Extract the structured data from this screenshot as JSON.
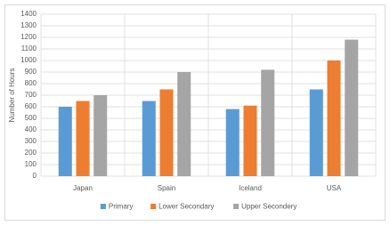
{
  "chart_data": {
    "type": "bar",
    "y_label": "Number of Hours",
    "categories": [
      "Japan",
      "Spain",
      "Iceland",
      "USA"
    ],
    "series": [
      {
        "name": "Primary",
        "color": "#5b9bd5",
        "values": [
          600,
          650,
          580,
          750
        ]
      },
      {
        "name": "Lower Secondary",
        "color": "#ed7d31",
        "values": [
          650,
          750,
          610,
          1000
        ]
      },
      {
        "name": "Upper Secondery",
        "color": "#a5a5a5",
        "values": [
          700,
          900,
          920,
          1180
        ]
      }
    ],
    "ylim": [
      0,
      1400
    ],
    "yticks": [
      0,
      100,
      200,
      300,
      400,
      500,
      600,
      700,
      800,
      900,
      1000,
      1100,
      1200,
      1300,
      1400
    ],
    "grid": true,
    "legend": "bottom"
  }
}
